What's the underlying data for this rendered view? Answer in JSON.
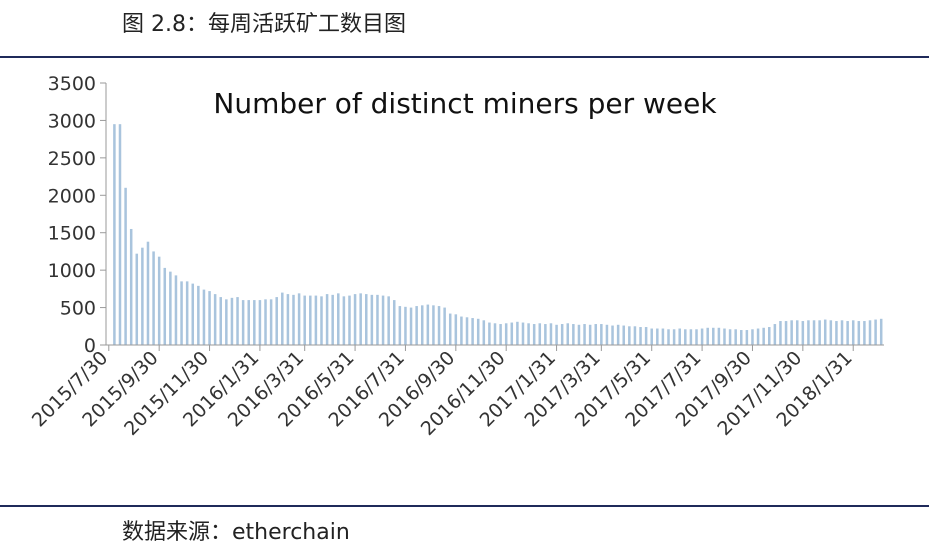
{
  "caption": "图 2.8：每周活跃矿工数目图",
  "source": "数据来源：etherchain",
  "chart_data": {
    "type": "bar",
    "title": "Number of distinct miners per week",
    "xlabel": "",
    "ylabel": "",
    "ylim": [
      0,
      3500
    ],
    "yticks": [
      0,
      500,
      1000,
      1500,
      2000,
      2500,
      3000,
      3500
    ],
    "bar_color": "#a9c4dd",
    "axis_color": "#9a9a9a",
    "grid": false,
    "legend": "none",
    "xtick_labels": [
      "2015/7/30",
      "2015/9/30",
      "2015/11/30",
      "2016/1/31",
      "2016/3/31",
      "2016/5/31",
      "2016/7/31",
      "2016/9/30",
      "2016/11/30",
      "2017/1/31",
      "2017/3/31",
      "2017/5/31",
      "2017/7/31",
      "2017/9/30",
      "2017/11/30",
      "2018/1/31"
    ],
    "xtick_week_index": [
      0,
      9,
      18,
      27,
      35,
      44,
      53,
      62,
      71,
      80,
      88,
      97,
      106,
      115,
      124,
      133
    ],
    "week_values": [
      1,
      2950,
      2950,
      2100,
      1550,
      1220,
      1300,
      1380,
      1250,
      1180,
      1030,
      980,
      930,
      850,
      850,
      820,
      790,
      740,
      720,
      680,
      640,
      610,
      630,
      640,
      600,
      600,
      600,
      600,
      610,
      610,
      640,
      700,
      680,
      670,
      690,
      660,
      660,
      660,
      650,
      680,
      670,
      690,
      650,
      660,
      680,
      690,
      680,
      670,
      670,
      660,
      650,
      600,
      520,
      510,
      500,
      520,
      530,
      540,
      530,
      520,
      500,
      420,
      410,
      380,
      370,
      360,
      350,
      330,
      300,
      290,
      280,
      290,
      300,
      310,
      300,
      290,
      280,
      290,
      280,
      290,
      270,
      280,
      290,
      280,
      270,
      280,
      270,
      280,
      280,
      270,
      260,
      270,
      260,
      250,
      250,
      240,
      240,
      220,
      220,
      220,
      210,
      210,
      220,
      210,
      210,
      210,
      220,
      230,
      230,
      230,
      220,
      210,
      210,
      200,
      200,
      210,
      220,
      230,
      240,
      280,
      320,
      320,
      330,
      330,
      320,
      330,
      330,
      330,
      340,
      330,
      320,
      330,
      320,
      330,
      320,
      320,
      330,
      340,
      350
    ]
  }
}
